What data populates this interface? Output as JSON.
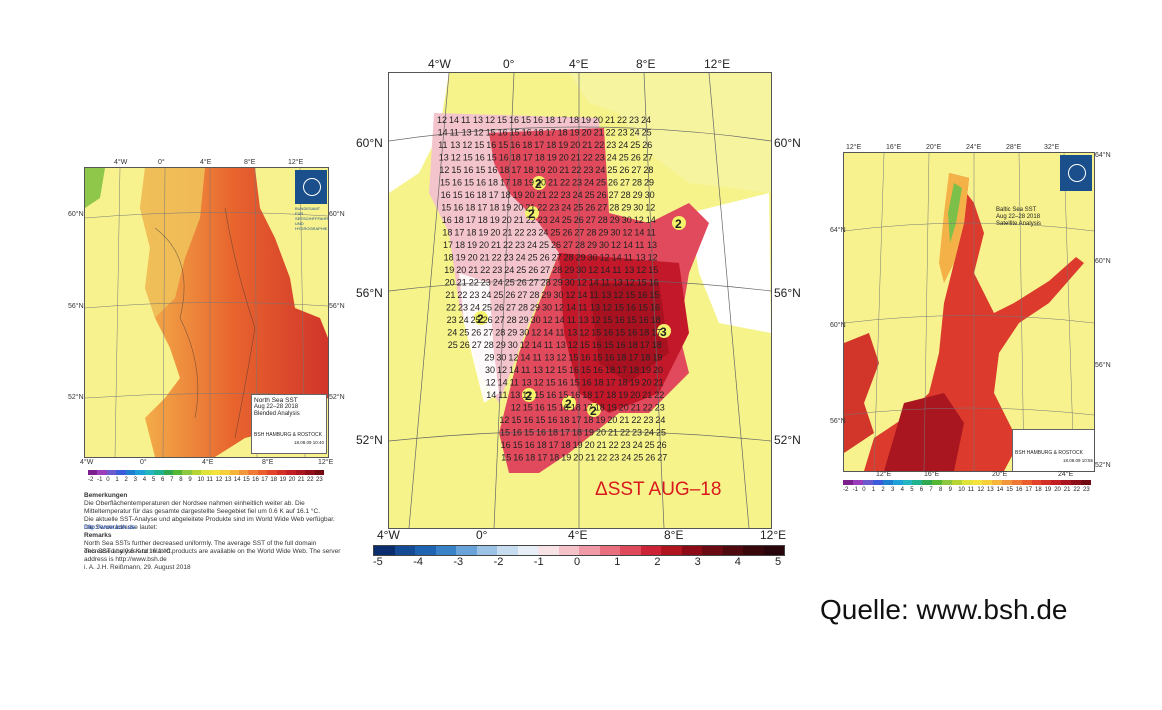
{
  "left_map": {
    "lon_top": [
      "4°W",
      "0°",
      "4°E",
      "8°E",
      "12°E"
    ],
    "lon_bottom": [
      "4°W",
      "0°",
      "4°E",
      "8°E",
      "12°E"
    ],
    "lat_left": [
      "60°N",
      "56°N",
      "52°N"
    ],
    "lat_right": [
      "60°N",
      "56°N",
      "52°N"
    ],
    "logo_text": "BUNDESAMT FÜR SEESCHIFFFAHRT UND HYDROGRAPHIE",
    "title": "North Sea SST",
    "dates": "Aug 22–28 2018",
    "analysis": "Blended Analysis",
    "org": "BSH HAMBURG & ROSTOCK",
    "timestamp": "18.08.09 10:40",
    "colorbar_ticks": [
      "-2",
      "-1",
      "0",
      "1",
      "2",
      "3",
      "4",
      "5",
      "6",
      "7",
      "8",
      "9",
      "10",
      "11",
      "12",
      "13",
      "14",
      "15",
      "16",
      "17",
      "18",
      "19",
      "20",
      "21",
      "22",
      "23"
    ],
    "colorbar_colors": [
      "#7a1f8c",
      "#9b3dbb",
      "#6a5acd",
      "#3b5bdb",
      "#1e7fd0",
      "#1fa0d8",
      "#23b5c0",
      "#21b38f",
      "#2fa84f",
      "#54b734",
      "#8dc63f",
      "#b6d433",
      "#dfe33a",
      "#f4e33c",
      "#f7cf3a",
      "#f6b43a",
      "#f3953a",
      "#ef7a35",
      "#ea5d2d",
      "#e1442a",
      "#d23026",
      "#c21f24",
      "#a91620",
      "#8e0f1a",
      "#720a14"
    ],
    "remarks_heading_de": "Bemerkungen",
    "remarks_de": "Die Oberflächentemperaturen der Nordsee nahmen einheitlich weiter ab. Die Mitteltemperatur für das gesamte dargestellte Seegebiet fiel um 0.6 K auf 16.1 °C.",
    "remarks_de_2": "Die aktuelle SST-Analyse und abgeleitete Produkte sind im World Wide Web verfügbar. Die Serveradresse lautet:",
    "url_de": "http://www.bsh.de",
    "remarks_heading_en": "Remarks",
    "remarks_en": "North Sea SSTs further decreased uniformly. The average SST of the full domain decreased by 0.6 K to 16.1 °C.",
    "remarks_en_2": "This SST analysis and related products are available on the World Wide Web. The server address is http://www.bsh.de",
    "author": "i. A. J.H. Reißmann, 29. August 2018"
  },
  "center_map": {
    "lon_top": [
      "4°W",
      "0°",
      "4°E",
      "8°E",
      "12°E"
    ],
    "lon_bottom": [
      "4°W",
      "0°",
      "4°E",
      "8°E",
      "12°E"
    ],
    "lat_left": [
      "60°N",
      "56°N",
      "52°N"
    ],
    "lat_right": [
      "60°N",
      "56°N",
      "52°N"
    ],
    "title": "ΔSST AUG–18",
    "colorbar_ticks": [
      "-5",
      "-4",
      "-3",
      "-2",
      "-1",
      "0",
      "1",
      "2",
      "3",
      "4",
      "5"
    ],
    "colorbar_colors": [
      "#0a2d6e",
      "#154a94",
      "#1f63b3",
      "#3a82c8",
      "#6aa3d9",
      "#9cc3e6",
      "#c7dcef",
      "#e8eef6",
      "#f7e3e6",
      "#f5c2c9",
      "#ef9aa6",
      "#e96f7f",
      "#de4a5c",
      "#cc2436",
      "#b0151f",
      "#8c0b16",
      "#6b0a12",
      "#4f0a10",
      "#38070c",
      "#28050a"
    ],
    "grid_sample": [
      "12",
      "14",
      "11",
      "13",
      "12",
      "15",
      "16",
      "15",
      "16",
      "18",
      "17",
      "18",
      "19",
      "20",
      "21",
      "22",
      "23",
      "24",
      "25",
      "26",
      "27",
      "28",
      "29",
      "30"
    ]
  },
  "right_map": {
    "lon_top": [
      "12°E",
      "16°E",
      "20°E",
      "24°E",
      "28°E",
      "32°E"
    ],
    "lon_bottom": [
      "12°E",
      "16°E",
      "20°E",
      "24°E"
    ],
    "lat_left": [
      "64°N",
      "60°N",
      "56°N"
    ],
    "lat_right": [
      "64°N",
      "60°N",
      "56°N",
      "52°N"
    ],
    "title": "Baltic Sea SST",
    "dates": "Aug 22–28 2018",
    "analysis": "Satellite Analysis",
    "org": "BSH HAMBURG & ROSTOCK",
    "timestamp": "18.08.09 10:55",
    "colorbar_ticks": [
      "-2",
      "-1",
      "0",
      "1",
      "2",
      "3",
      "4",
      "5",
      "6",
      "7",
      "8",
      "9",
      "10",
      "11",
      "12",
      "13",
      "14",
      "15",
      "16",
      "17",
      "18",
      "19",
      "20",
      "21",
      "22",
      "23"
    ]
  },
  "source": "Quelle: www.bsh.de"
}
